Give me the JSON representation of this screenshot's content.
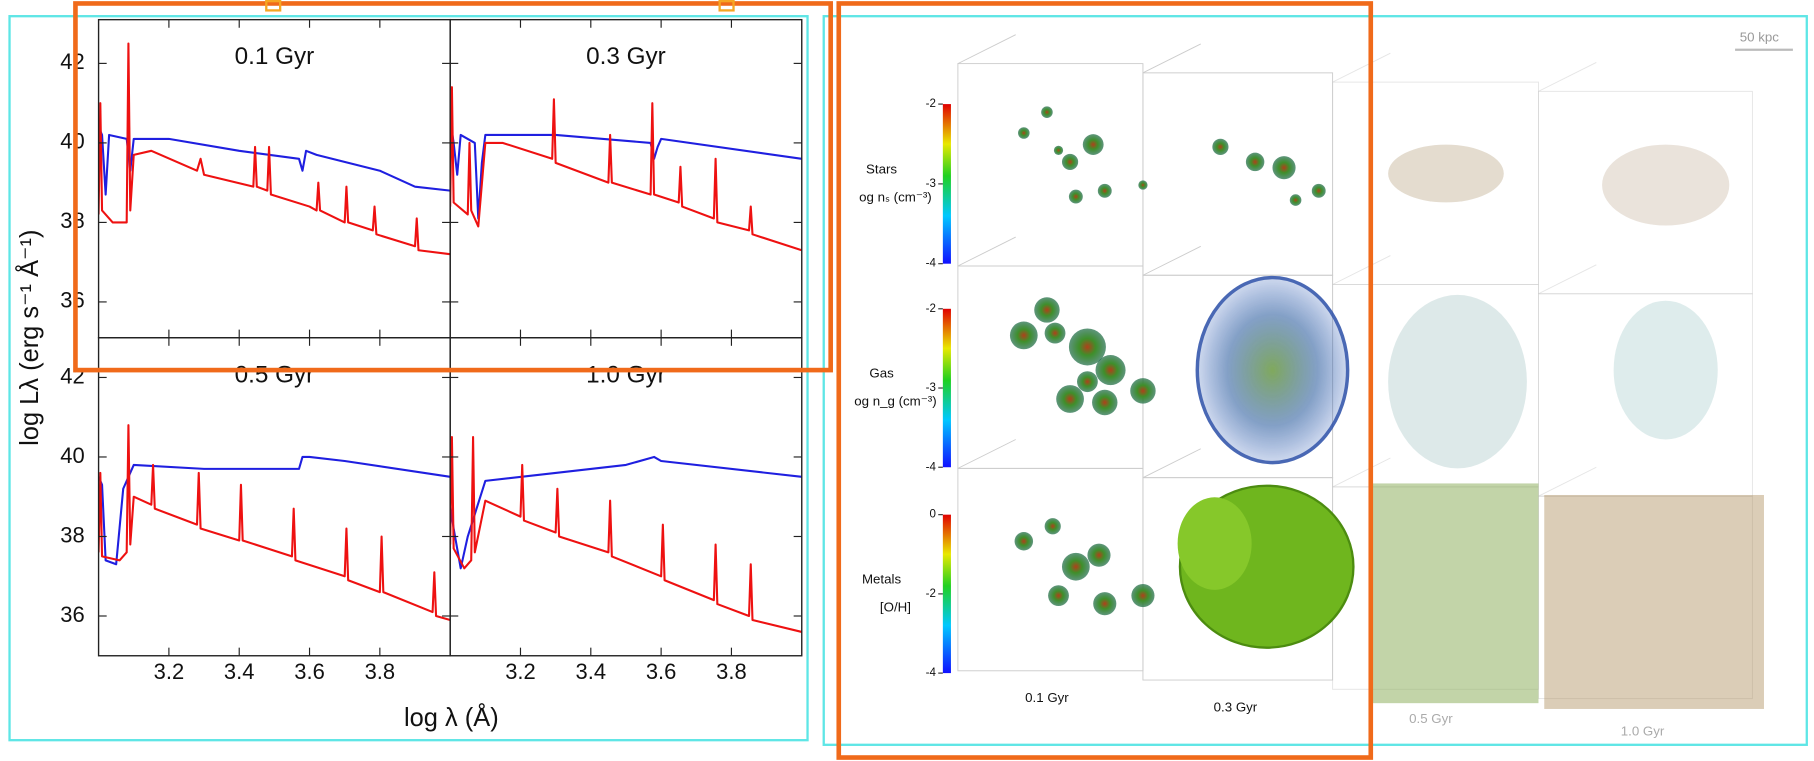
{
  "chart_data": {
    "type": "line",
    "xlabel": "log λ (Å)",
    "ylabel": "log Lλ (erg s⁻¹ Å⁻¹)",
    "xlim": [
      3.0,
      4.0
    ],
    "xticks": [
      3.2,
      3.4,
      3.6,
      3.8
    ],
    "panels": [
      {
        "title": "0.1 Gyr",
        "ylim": [
          35.1,
          43.1
        ],
        "yticks": [
          36,
          38,
          40,
          42
        ],
        "series": [
          {
            "color": "#1f1fe0",
            "x": [
              3.0,
              3.01,
              3.02,
              3.03,
              3.08,
              3.09,
              3.1,
              3.2,
              3.4,
              3.57,
              3.58,
              3.59,
              3.62,
              3.8,
              3.9,
              4.0
            ],
            "values": [
              40.4,
              40.2,
              38.7,
              40.2,
              40.1,
              39.3,
              40.1,
              40.1,
              39.8,
              39.6,
              39.3,
              39.8,
              39.7,
              39.3,
              38.9,
              38.8
            ]
          },
          {
            "color": "#ee1111",
            "x": [
              3.0,
              3.005,
              3.01,
              3.04,
              3.08,
              3.085,
              3.09,
              3.1,
              3.15,
              3.28,
              3.29,
              3.3,
              3.44,
              3.445,
              3.45,
              3.48,
              3.485,
              3.49,
              3.6,
              3.62,
              3.625,
              3.63,
              3.7,
              3.705,
              3.71,
              3.78,
              3.785,
              3.79,
              3.9,
              3.905,
              3.91,
              4.0
            ],
            "values": [
              38.2,
              41.0,
              38.3,
              38.0,
              38.0,
              42.5,
              38.3,
              39.7,
              39.8,
              39.3,
              39.6,
              39.2,
              38.9,
              39.9,
              38.9,
              38.8,
              39.9,
              38.7,
              38.4,
              38.3,
              39.0,
              38.3,
              38.0,
              38.9,
              38.0,
              37.8,
              38.4,
              37.7,
              37.4,
              38.1,
              37.3,
              37.2
            ]
          }
        ]
      },
      {
        "title": "0.3 Gyr",
        "ylim": [
          35.1,
          43.1
        ],
        "yticks": [
          36,
          38,
          40,
          42
        ],
        "series": [
          {
            "color": "#1f1fe0",
            "x": [
              3.0,
              3.01,
              3.02,
              3.03,
              3.07,
              3.08,
              3.09,
              3.1,
              3.3,
              3.57,
              3.58,
              3.59,
              3.6,
              4.0
            ],
            "values": [
              40.6,
              40.0,
              39.2,
              40.2,
              40.0,
              38.1,
              39.5,
              40.2,
              40.2,
              40.0,
              39.6,
              39.9,
              40.1,
              39.6
            ]
          },
          {
            "color": "#ee1111",
            "x": [
              3.0,
              3.005,
              3.01,
              3.05,
              3.055,
              3.06,
              3.08,
              3.1,
              3.15,
              3.29,
              3.295,
              3.3,
              3.45,
              3.455,
              3.46,
              3.57,
              3.575,
              3.58,
              3.65,
              3.655,
              3.66,
              3.75,
              3.755,
              3.76,
              3.85,
              3.855,
              3.86,
              4.0
            ],
            "values": [
              38.4,
              41.4,
              38.5,
              38.2,
              40.0,
              38.3,
              37.9,
              40.0,
              40.0,
              39.6,
              41.1,
              39.5,
              39.0,
              40.2,
              39.0,
              38.7,
              41.0,
              38.7,
              38.5,
              39.4,
              38.4,
              38.1,
              39.6,
              38.0,
              37.8,
              38.4,
              37.7,
              37.3
            ]
          }
        ]
      },
      {
        "title": "0.5 Gyr",
        "ylim": [
          35.0,
          43.0
        ],
        "yticks": [
          36,
          38,
          40,
          42
        ],
        "series": [
          {
            "color": "#1f1fe0",
            "x": [
              3.0,
              3.01,
              3.02,
              3.05,
              3.07,
              3.1,
              3.3,
              3.57,
              3.58,
              3.6,
              3.7,
              4.0
            ],
            "values": [
              39.5,
              39.3,
              37.4,
              37.3,
              39.2,
              39.8,
              39.7,
              39.7,
              40.0,
              40.0,
              39.9,
              39.5
            ]
          },
          {
            "color": "#ee1111",
            "x": [
              3.0,
              3.005,
              3.01,
              3.06,
              3.08,
              3.085,
              3.09,
              3.1,
              3.15,
              3.155,
              3.16,
              3.28,
              3.285,
              3.29,
              3.4,
              3.405,
              3.41,
              3.55,
              3.555,
              3.56,
              3.7,
              3.705,
              3.71,
              3.8,
              3.805,
              3.81,
              3.95,
              3.955,
              3.96,
              4.0
            ],
            "values": [
              37.6,
              39.6,
              37.5,
              37.4,
              37.6,
              40.8,
              37.8,
              39.0,
              38.8,
              39.8,
              38.7,
              38.3,
              39.6,
              38.2,
              37.9,
              39.3,
              37.9,
              37.5,
              38.7,
              37.4,
              37.0,
              38.2,
              36.9,
              36.6,
              38.0,
              36.6,
              36.1,
              37.1,
              36.0,
              35.9
            ]
          }
        ]
      },
      {
        "title": "1.0 Gyr",
        "ylim": [
          35.0,
          43.0
        ],
        "yticks": [
          36,
          38,
          40,
          42
        ],
        "series": [
          {
            "color": "#1f1fe0",
            "x": [
              3.0,
              3.01,
              3.03,
              3.05,
              3.1,
              3.3,
              3.5,
              3.58,
              3.6,
              4.0
            ],
            "values": [
              38.8,
              38.2,
              37.2,
              38.0,
              39.4,
              39.6,
              39.8,
              40.0,
              39.9,
              39.5
            ]
          },
          {
            "color": "#ee1111",
            "x": [
              3.0,
              3.005,
              3.01,
              3.04,
              3.06,
              3.065,
              3.07,
              3.1,
              3.2,
              3.205,
              3.21,
              3.3,
              3.305,
              3.31,
              3.45,
              3.455,
              3.46,
              3.6,
              3.605,
              3.61,
              3.75,
              3.755,
              3.76,
              3.85,
              3.855,
              3.86,
              4.0
            ],
            "values": [
              37.8,
              40.5,
              37.7,
              37.2,
              37.4,
              40.5,
              37.6,
              38.9,
              38.5,
              39.8,
              38.4,
              38.1,
              39.2,
              38.0,
              37.6,
              38.9,
              37.5,
              37.0,
              38.3,
              36.9,
              36.4,
              37.8,
              36.3,
              36.0,
              37.3,
              35.9,
              35.6
            ]
          }
        ]
      }
    ]
  },
  "renderings": {
    "scale_bar": "50 kpc",
    "columns": [
      "0.1 Gyr",
      "0.3 Gyr",
      "0.5 Gyr",
      "1.0 Gyr"
    ],
    "rows": [
      {
        "label": "Stars",
        "unit": "og nₛ (cm⁻³)",
        "cbar_lim": [
          -4,
          -2
        ],
        "cbar_ticks": [
          -2,
          -3,
          -4
        ]
      },
      {
        "label": "Gas",
        "unit": "og n_g (cm⁻³)",
        "cbar_lim": [
          -4,
          -2
        ],
        "cbar_ticks": [
          -2,
          -3,
          -4
        ]
      },
      {
        "label": "Metals",
        "unit": "[O/H]",
        "cbar_lim": [
          -4,
          0
        ],
        "cbar_ticks": [
          0,
          -2,
          -4
        ]
      }
    ]
  }
}
